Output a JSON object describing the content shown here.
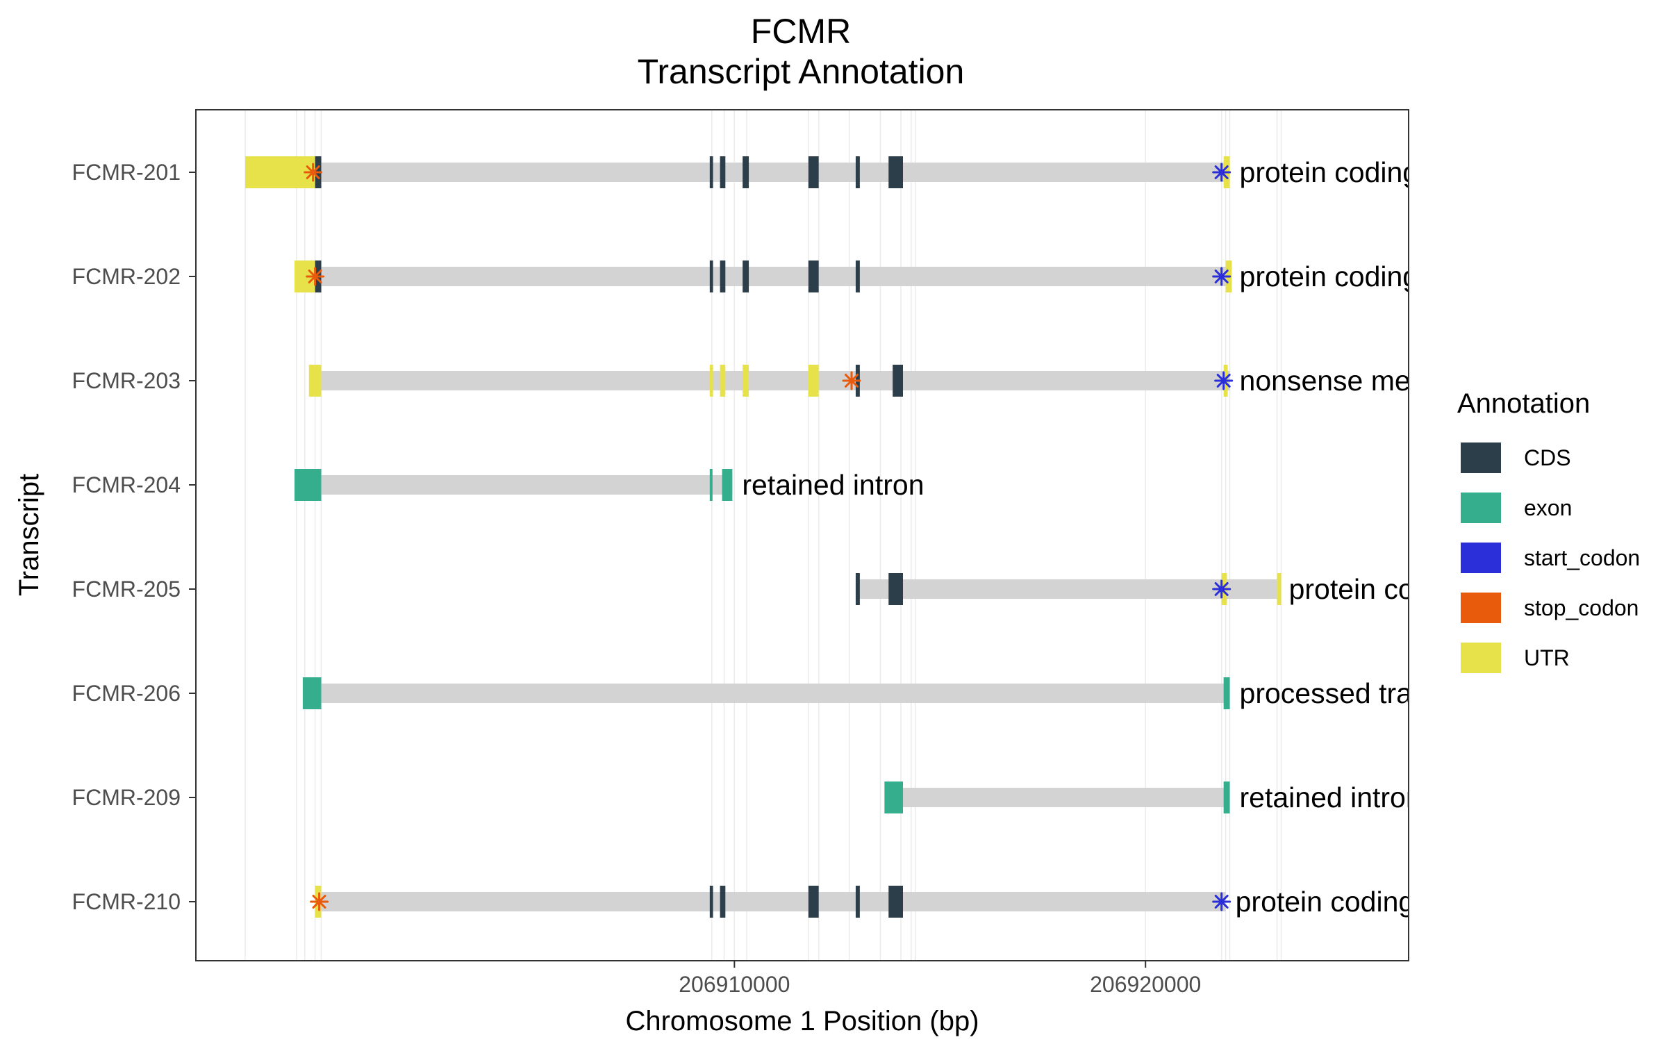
{
  "chart_data": {
    "type": "gene_annotation",
    "title": "FCMR",
    "subtitle": "Transcript Annotation",
    "xlabel": "Chromosome 1 Position (bp)",
    "ylabel": "Transcript",
    "xlim": [
      206896900,
      206926400
    ],
    "x_ticks": [
      {
        "value": 206910000,
        "label": "206910000"
      },
      {
        "value": 206920000,
        "label": "206920000"
      }
    ],
    "grid": true,
    "legend_position": "right",
    "legend": {
      "title": "Annotation",
      "items": [
        {
          "label": "CDS",
          "color": "#2C3E4A"
        },
        {
          "label": "exon",
          "color": "#35AE8E"
        },
        {
          "label": "start_codon",
          "color": "#2B2FD9"
        },
        {
          "label": "stop_codon",
          "color": "#E85A0C"
        },
        {
          "label": "UTR",
          "color": "#E8E24A"
        }
      ]
    },
    "intron_color": "#D3D3D3",
    "vertical_gridlines": [
      206898100,
      206899350,
      206899550,
      206899800,
      206899950,
      206909450,
      206909750,
      206910300,
      206911800,
      206912050,
      206912800,
      206913550,
      206914050,
      206914300,
      206914400,
      206921850,
      206921950,
      206922050,
      206923200,
      206923300
    ],
    "transcripts": [
      {
        "name": "FCMR-210",
        "biotype": "protein coding",
        "span": [
          206899950,
          206921950
        ],
        "features": [
          {
            "type": "UTR",
            "start": 206899800,
            "end": 206899950
          },
          {
            "type": "CDS",
            "start": 206909400,
            "end": 206909480
          },
          {
            "type": "CDS",
            "start": 206909650,
            "end": 206909780
          },
          {
            "type": "CDS",
            "start": 206911800,
            "end": 206912050
          },
          {
            "type": "CDS",
            "start": 206912950,
            "end": 206913050
          },
          {
            "type": "CDS",
            "start": 206913750,
            "end": 206914100
          }
        ],
        "stop_codon": 206899900,
        "start_codon": 206921850
      },
      {
        "name": "FCMR-209",
        "biotype": "retained intron",
        "span": [
          206914100,
          206922050
        ],
        "features": [
          {
            "type": "exon",
            "start": 206913650,
            "end": 206914100
          },
          {
            "type": "exon",
            "start": 206921900,
            "end": 206922050
          }
        ]
      },
      {
        "name": "FCMR-206",
        "biotype": "processed transcript",
        "span": [
          206899950,
          206922050
        ],
        "features": [
          {
            "type": "exon",
            "start": 206899500,
            "end": 206899950
          },
          {
            "type": "exon",
            "start": 206921900,
            "end": 206922050
          }
        ]
      },
      {
        "name": "FCMR-205",
        "biotype": "protein coding",
        "span": [
          206912950,
          206923250
        ],
        "features": [
          {
            "type": "CDS",
            "start": 206912950,
            "end": 206913050
          },
          {
            "type": "CDS",
            "start": 206913750,
            "end": 206914100
          },
          {
            "type": "UTR",
            "start": 206921850,
            "end": 206921980
          },
          {
            "type": "UTR",
            "start": 206923200,
            "end": 206923300
          }
        ],
        "start_codon": 206921850
      },
      {
        "name": "FCMR-204",
        "biotype": "retained intron",
        "span": [
          206899950,
          206909950
        ],
        "features": [
          {
            "type": "exon",
            "start": 206899300,
            "end": 206899950
          },
          {
            "type": "exon",
            "start": 206909400,
            "end": 206909450
          },
          {
            "type": "exon",
            "start": 206909700,
            "end": 206909950
          }
        ]
      },
      {
        "name": "FCMR-203",
        "biotype": "nonsense mediated decay",
        "span": [
          206899950,
          206922050
        ],
        "features": [
          {
            "type": "UTR",
            "start": 206899650,
            "end": 206899950
          },
          {
            "type": "UTR",
            "start": 206909400,
            "end": 206909480
          },
          {
            "type": "UTR",
            "start": 206909650,
            "end": 206909780
          },
          {
            "type": "UTR",
            "start": 206910200,
            "end": 206910350
          },
          {
            "type": "UTR",
            "start": 206911800,
            "end": 206912050
          },
          {
            "type": "CDS",
            "start": 206912950,
            "end": 206913050
          },
          {
            "type": "CDS",
            "start": 206913850,
            "end": 206914100
          },
          {
            "type": "UTR",
            "start": 206921900,
            "end": 206922000
          }
        ],
        "stop_codon": 206912850,
        "start_codon": 206921900
      },
      {
        "name": "FCMR-202",
        "biotype": "protein coding",
        "span": [
          206899950,
          206922050
        ],
        "features": [
          {
            "type": "UTR",
            "start": 206899300,
            "end": 206899800
          },
          {
            "type": "CDS",
            "start": 206899800,
            "end": 206899950
          },
          {
            "type": "CDS",
            "start": 206909400,
            "end": 206909480
          },
          {
            "type": "CDS",
            "start": 206909650,
            "end": 206909780
          },
          {
            "type": "CDS",
            "start": 206910200,
            "end": 206910350
          },
          {
            "type": "CDS",
            "start": 206911800,
            "end": 206912050
          },
          {
            "type": "CDS",
            "start": 206912950,
            "end": 206913050
          },
          {
            "type": "UTR",
            "start": 206921950,
            "end": 206922100
          }
        ],
        "stop_codon": 206899800,
        "start_codon": 206921850
      },
      {
        "name": "FCMR-201",
        "biotype": "protein coding",
        "span": [
          206899950,
          206922050
        ],
        "features": [
          {
            "type": "UTR",
            "start": 206898100,
            "end": 206899800
          },
          {
            "type": "CDS",
            "start": 206899800,
            "end": 206899950
          },
          {
            "type": "CDS",
            "start": 206909400,
            "end": 206909480
          },
          {
            "type": "CDS",
            "start": 206909650,
            "end": 206909780
          },
          {
            "type": "CDS",
            "start": 206910200,
            "end": 206910350
          },
          {
            "type": "CDS",
            "start": 206911800,
            "end": 206912050
          },
          {
            "type": "CDS",
            "start": 206912950,
            "end": 206913050
          },
          {
            "type": "CDS",
            "start": 206913750,
            "end": 206914100
          },
          {
            "type": "UTR",
            "start": 206921900,
            "end": 206922050
          }
        ],
        "stop_codon": 206899750,
        "start_codon": 206921850
      }
    ]
  }
}
